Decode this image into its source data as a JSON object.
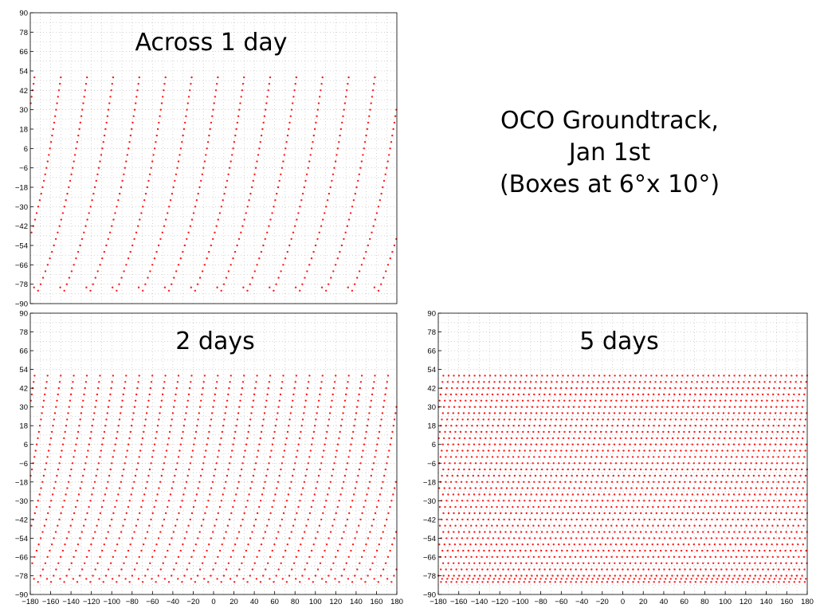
{
  "page_title": {
    "line1": "OCO Groundtrack,",
    "line2": "Jan 1st",
    "line3": "(Boxes at 6°x 10°)"
  },
  "colors": {
    "points": "#ff1a1a",
    "grid": "#b8b8b8",
    "axes": "#000000"
  },
  "chart_data": [
    {
      "type": "scatter",
      "title": "Across 1 day",
      "xlim": [
        -180,
        180
      ],
      "ylim": [
        -90,
        90
      ],
      "grid": true,
      "x_grid_step": 10,
      "y_grid_step": 6,
      "yticks": [
        90,
        78,
        66,
        54,
        42,
        30,
        18,
        6,
        -6,
        -18,
        -30,
        -42,
        -54,
        -66,
        -78,
        -90
      ],
      "xticks": [],
      "num_tracks": 14,
      "track_spacing_deg": 25.7,
      "first_track_lon_at_50N": -150,
      "lat_range": [
        -82,
        50
      ],
      "series": [
        {
          "color": "#ff1a1a"
        }
      ]
    },
    {
      "type": "scatter",
      "title": "2 days",
      "xlim": [
        -180,
        180
      ],
      "ylim": [
        -90,
        90
      ],
      "grid": true,
      "x_grid_step": 10,
      "y_grid_step": 6,
      "yticks": [
        90,
        78,
        66,
        54,
        42,
        30,
        18,
        6,
        -6,
        -18,
        -30,
        -42,
        -54,
        -66,
        -78,
        -90
      ],
      "xticks": [
        -180,
        -160,
        -140,
        -120,
        -100,
        -80,
        -60,
        -40,
        -20,
        0,
        20,
        40,
        60,
        80,
        100,
        120,
        140,
        160,
        180
      ],
      "num_tracks": 28,
      "track_spacing_deg": 12.86,
      "first_track_lon_at_50N": -163,
      "lat_range": [
        -82,
        50
      ],
      "series": [
        {
          "color": "#ff1a1a"
        }
      ]
    },
    {
      "type": "scatter",
      "title": "5 days",
      "xlim": [
        -180,
        180
      ],
      "ylim": [
        -90,
        90
      ],
      "grid": true,
      "x_grid_step": 10,
      "y_grid_step": 6,
      "yticks": [
        90,
        78,
        66,
        54,
        42,
        30,
        18,
        6,
        -6,
        -18,
        -30,
        -42,
        -54,
        -66,
        -78,
        -90
      ],
      "xticks": [
        -180,
        -160,
        -140,
        -120,
        -100,
        -80,
        -60,
        -40,
        -20,
        0,
        20,
        40,
        60,
        80,
        100,
        120,
        140,
        160,
        180
      ],
      "num_tracks": 71,
      "track_spacing_deg": 5.07,
      "first_track_lon_at_50N": -175,
      "lat_range": [
        -82,
        50
      ],
      "series": [
        {
          "color": "#ff1a1a"
        }
      ]
    }
  ]
}
